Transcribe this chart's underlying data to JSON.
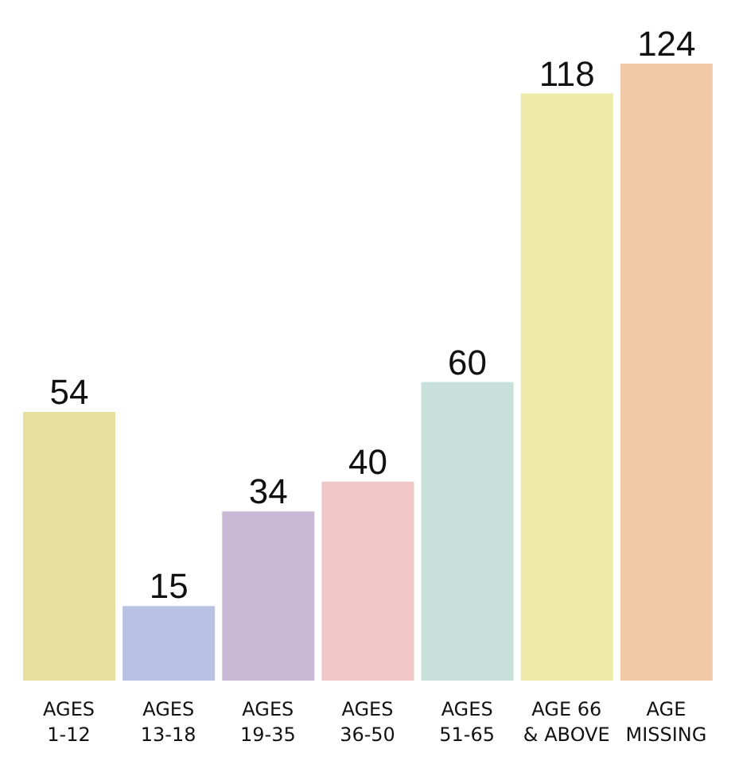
{
  "chart_data": {
    "type": "bar",
    "categories": [
      "AGES\n1-12",
      "AGES\n13-18",
      "AGES\n19-35",
      "AGES\n36-50",
      "AGES\n51-65",
      "AGE 66\n& ABOVE",
      "AGE\nMISSING"
    ],
    "values": [
      54,
      15,
      34,
      40,
      60,
      118,
      124
    ],
    "colors": [
      "#e6dfa0",
      "#b9c2e2",
      "#c9b9d6",
      "#f0c9c6",
      "#c8e0da",
      "#ede9a9",
      "#f2c9a6"
    ],
    "data_labels": true
  }
}
